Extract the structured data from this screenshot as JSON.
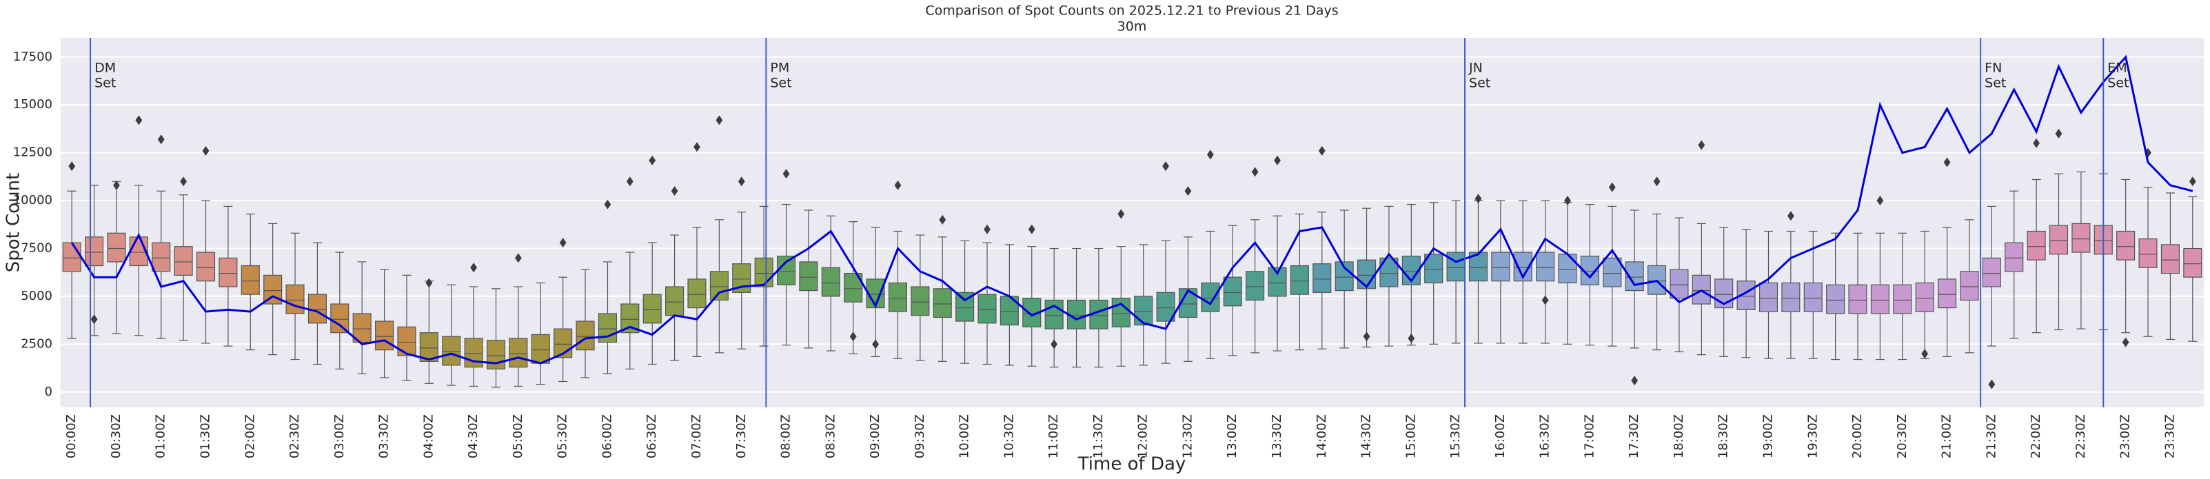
{
  "chart_data": {
    "type": "box",
    "title": "Comparison of Spot Counts on 2025.12.21 to Previous 21 Days",
    "subtitle": "30m",
    "x_label": "Time of Day",
    "y_label": "Spot Count",
    "ylim": [
      -800,
      18500
    ],
    "yticks": [
      0,
      2500,
      5000,
      7500,
      10000,
      12500,
      15000,
      17500
    ],
    "grid": true,
    "background": "#eaeaf2",
    "categories": [
      "00:00Z",
      null,
      "00:30Z",
      null,
      "01:00Z",
      null,
      "01:30Z",
      null,
      "02:00Z",
      null,
      "02:30Z",
      null,
      "03:00Z",
      null,
      "03:30Z",
      null,
      "04:00Z",
      null,
      "04:30Z",
      null,
      "05:00Z",
      null,
      "05:30Z",
      null,
      "06:00Z",
      null,
      "06:30Z",
      null,
      "07:00Z",
      null,
      "07:30Z",
      null,
      "08:00Z",
      null,
      "08:30Z",
      null,
      "09:00Z",
      null,
      "09:30Z",
      null,
      "10:00Z",
      null,
      "10:30Z",
      null,
      "11:00Z",
      null,
      "11:30Z",
      null,
      "12:00Z",
      null,
      "12:30Z",
      null,
      "13:00Z",
      null,
      "13:30Z",
      null,
      "14:00Z",
      null,
      "14:30Z",
      null,
      "15:00Z",
      null,
      "15:30Z",
      null,
      "16:00Z",
      null,
      "16:30Z",
      null,
      "17:00Z",
      null,
      "17:30Z",
      null,
      "18:00Z",
      null,
      "18:30Z",
      null,
      "19:00Z",
      null,
      "19:30Z",
      null,
      "20:00Z",
      null,
      "20:30Z",
      null,
      "21:00Z",
      null,
      "21:30Z",
      null,
      "22:00Z",
      null,
      "22:30Z",
      null,
      "23:00Z",
      null,
      "23:30Z",
      null
    ],
    "palette": [
      "#d88f86",
      "#c48a4a",
      "#a3923f",
      "#8a9e4a",
      "#5f9e5d",
      "#4f9e74",
      "#4f9d8c",
      "#5a9bab",
      "#8aa5cf",
      "#ab9fd6",
      "#c898d0",
      "#d98fae"
    ],
    "boxes": {
      "whislo": [
        2800,
        2950,
        3050,
        2950,
        2800,
        2700,
        2550,
        2400,
        2200,
        1950,
        1700,
        1450,
        1200,
        950,
        750,
        600,
        450,
        350,
        300,
        250,
        300,
        400,
        550,
        750,
        950,
        1200,
        1450,
        1650,
        1850,
        2050,
        2250,
        2400,
        2450,
        2300,
        2150,
        2000,
        1850,
        1750,
        1650,
        1600,
        1500,
        1450,
        1400,
        1350,
        1300,
        1300,
        1300,
        1350,
        1400,
        1500,
        1600,
        1750,
        1900,
        2050,
        2150,
        2200,
        2250,
        2300,
        2350,
        2400,
        2450,
        2500,
        2550,
        2550,
        2550,
        2550,
        2550,
        2500,
        2450,
        2400,
        2300,
        2200,
        2100,
        1950,
        1850,
        1800,
        1750,
        1750,
        1750,
        1700,
        1700,
        1700,
        1700,
        1750,
        1850,
        2050,
        2400,
        2800,
        3100,
        3250,
        3300,
        3250,
        3100,
        2900,
        2750,
        2650
      ],
      "q1": [
        6300,
        6600,
        6800,
        6600,
        6300,
        6100,
        5800,
        5500,
        5100,
        4600,
        4100,
        3600,
        3100,
        2600,
        2200,
        1900,
        1600,
        1400,
        1300,
        1200,
        1300,
        1500,
        1800,
        2200,
        2600,
        3100,
        3600,
        4000,
        4400,
        4800,
        5200,
        5500,
        5600,
        5300,
        5000,
        4700,
        4400,
        4200,
        4000,
        3900,
        3700,
        3600,
        3500,
        3400,
        3300,
        3300,
        3300,
        3400,
        3500,
        3700,
        3900,
        4200,
        4500,
        4800,
        5000,
        5100,
        5200,
        5300,
        5400,
        5500,
        5600,
        5700,
        5800,
        5800,
        5800,
        5800,
        5800,
        5700,
        5600,
        5500,
        5300,
        5100,
        4900,
        4600,
        4400,
        4300,
        4200,
        4200,
        4200,
        4100,
        4100,
        4100,
        4100,
        4200,
        4400,
        4800,
        5500,
        6300,
        6900,
        7200,
        7300,
        7200,
        6900,
        6500,
        6200,
        6000
      ],
      "median": [
        7000,
        7300,
        7500,
        7300,
        7000,
        6800,
        6500,
        6200,
        5800,
        5300,
        4800,
        4300,
        3800,
        3300,
        2900,
        2600,
        2300,
        2100,
        2000,
        1900,
        2000,
        2200,
        2500,
        2900,
        3300,
        3800,
        4300,
        4700,
        5100,
        5500,
        5900,
        6200,
        6300,
        6000,
        5700,
        5400,
        5100,
        4900,
        4700,
        4600,
        4400,
        4300,
        4200,
        4100,
        4000,
        4000,
        4000,
        4100,
        4200,
        4400,
        4600,
        4900,
        5200,
        5500,
        5700,
        5800,
        5900,
        6000,
        6100,
        6200,
        6300,
        6400,
        6500,
        6500,
        6500,
        6500,
        6500,
        6400,
        6300,
        6200,
        6000,
        5800,
        5600,
        5300,
        5100,
        5000,
        4900,
        4900,
        4900,
        4800,
        4800,
        4800,
        4800,
        4900,
        5100,
        5500,
        6200,
        7000,
        7600,
        7900,
        8000,
        7900,
        7600,
        7200,
        6900,
        6700
      ],
      "q3": [
        7800,
        8100,
        8300,
        8100,
        7800,
        7600,
        7300,
        7000,
        6600,
        6100,
        5600,
        5100,
        4600,
        4100,
        3700,
        3400,
        3100,
        2900,
        2800,
        2700,
        2800,
        3000,
        3300,
        3700,
        4100,
        4600,
        5100,
        5500,
        5900,
        6300,
        6700,
        7000,
        7100,
        6800,
        6500,
        6200,
        5900,
        5700,
        5500,
        5400,
        5200,
        5100,
        5000,
        4900,
        4800,
        4800,
        4800,
        4900,
        5000,
        5200,
        5400,
        5700,
        6000,
        6300,
        6500,
        6600,
        6700,
        6800,
        6900,
        7000,
        7100,
        7200,
        7300,
        7300,
        7300,
        7300,
        7300,
        7200,
        7100,
        7000,
        6800,
        6600,
        6400,
        6100,
        5900,
        5800,
        5700,
        5700,
        5700,
        5600,
        5600,
        5600,
        5600,
        5700,
        5900,
        6300,
        7000,
        7800,
        8400,
        8700,
        8800,
        8700,
        8400,
        8000,
        7700,
        7500
      ],
      "whishi": [
        10500,
        10800,
        11000,
        10800,
        10500,
        10300,
        10000,
        9700,
        9300,
        8800,
        8300,
        7800,
        7300,
        6800,
        6400,
        6100,
        5800,
        5600,
        5500,
        5400,
        5500,
        5700,
        6000,
        6400,
        6800,
        7300,
        7800,
        8200,
        8600,
        9000,
        9400,
        9700,
        9800,
        9500,
        9200,
        8900,
        8600,
        8400,
        8200,
        8100,
        7900,
        7800,
        7700,
        7600,
        7500,
        7500,
        7500,
        7600,
        7700,
        7900,
        8100,
        8400,
        8700,
        9000,
        9200,
        9300,
        9400,
        9500,
        9600,
        9700,
        9800,
        9900,
        10000,
        10000,
        10000,
        10000,
        10000,
        9900,
        9800,
        9700,
        9500,
        9300,
        9100,
        8800,
        8600,
        8500,
        8400,
        8400,
        8400,
        8300,
        8300,
        8300,
        8300,
        8400,
        8600,
        9000,
        9700,
        10500,
        11100,
        11400,
        11500,
        11400,
        11100,
        10700,
        10400,
        10200
      ]
    },
    "outlier_slots": [
      0,
      1,
      2,
      3,
      4,
      5,
      6,
      16,
      18,
      20,
      22,
      24,
      25,
      26,
      27,
      28,
      29,
      30,
      32,
      35,
      36,
      37,
      39,
      41,
      43,
      44,
      47,
      49,
      50,
      51,
      53,
      54,
      56,
      58,
      60,
      63,
      66,
      67,
      69,
      70,
      71,
      73,
      77,
      81,
      83,
      84,
      86,
      88,
      89,
      92,
      93,
      95
    ],
    "outlier_values": [
      11800,
      3800,
      10800,
      14200,
      13200,
      11000,
      12600,
      5700,
      6500,
      7000,
      7800,
      9800,
      11000,
      12100,
      10500,
      12800,
      14200,
      11000,
      11400,
      2900,
      2500,
      10800,
      9000,
      8500,
      8500,
      2500,
      9300,
      11800,
      10500,
      12400,
      11500,
      12100,
      12600,
      2900,
      2800,
      10100,
      4800,
      10000,
      10700,
      600,
      11000,
      12900,
      9200,
      10000,
      2000,
      12000,
      400,
      13000,
      13500,
      2600,
      12500,
      11000
    ],
    "line": {
      "color": "#0000dd",
      "values": [
        7800,
        6000,
        6000,
        8200,
        5500,
        5800,
        4200,
        4300,
        4200,
        5000,
        4500,
        4200,
        3500,
        2500,
        2700,
        2000,
        1700,
        2000,
        1600,
        1500,
        1800,
        1500,
        2000,
        2800,
        2900,
        3400,
        3000,
        4000,
        3800,
        5200,
        5500,
        5600,
        6800,
        7500,
        8400,
        6500,
        4500,
        7500,
        6300,
        5800,
        4800,
        5500,
        5000,
        4000,
        4500,
        3800,
        4200,
        4600,
        3600,
        3300,
        5300,
        4600,
        6500,
        7800,
        6200,
        8400,
        8600,
        6500,
        5500,
        7200,
        5800,
        7500,
        6800,
        7200,
        8500,
        6000,
        8000,
        7200,
        6000,
        7400,
        5600,
        5800,
        4700,
        5300,
        4600,
        5200,
        5900,
        7000,
        7500,
        8000,
        9500,
        15000,
        12500,
        12800,
        14800,
        12500,
        13500,
        15800,
        13600,
        17000,
        14600,
        16200,
        17500,
        12000,
        10800,
        10500
      ]
    },
    "annotation_color": "#3a5fcd",
    "annotations": [
      {
        "x": 0.83,
        "lines": [
          "DM",
          "Set"
        ]
      },
      {
        "x": 31.1,
        "lines": [
          "PM",
          "Set"
        ]
      },
      {
        "x": 62.4,
        "lines": [
          "JN",
          "Set"
        ]
      },
      {
        "x": 85.5,
        "lines": [
          "FN",
          "Set"
        ]
      },
      {
        "x": 91.0,
        "lines": [
          "EM",
          "Set"
        ]
      }
    ]
  }
}
